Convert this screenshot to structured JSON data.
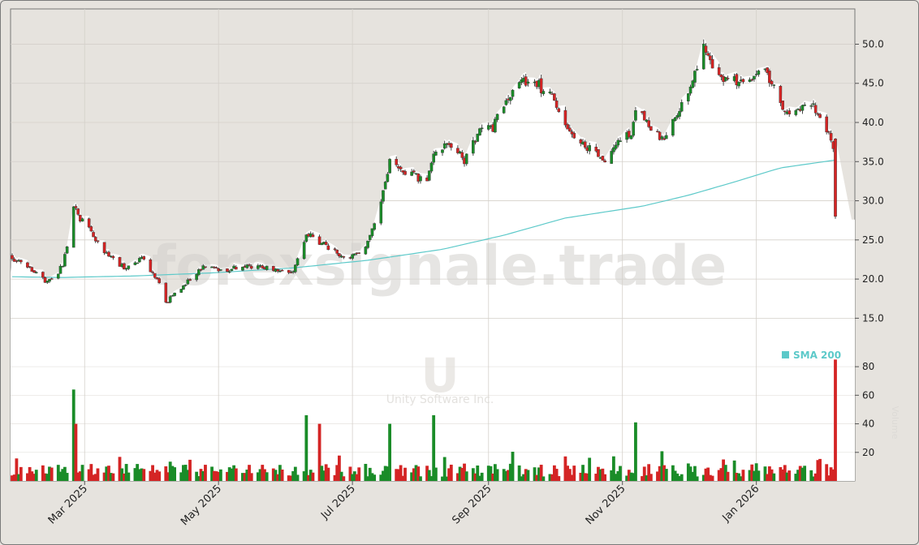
{
  "watermark": {
    "brand": "forexsignale.trade",
    "symbol": "U",
    "company": "Unity Software Inc.",
    "side_label": "Volume"
  },
  "legend": {
    "sma_label": "SMA 200"
  },
  "colors": {
    "background": "#e6e3de",
    "up": "#1a8c28",
    "down": "#d42424",
    "sma": "#5cc9c9",
    "grid": "#d4d0ca"
  },
  "chart_data": [
    {
      "type": "candlestick",
      "title": "",
      "x_axis": {
        "type": "date",
        "ticks": [
          "Mar 2025",
          "May 2025",
          "Jul 2025",
          "Sep 2025",
          "Nov 2025",
          "Jan 2026"
        ],
        "range": [
          "2025-01-27",
          "2026-02-06"
        ]
      },
      "y_axis": {
        "side": "right",
        "ylim": [
          11.0,
          54.5
        ],
        "ticks": [
          "15.0",
          "20.0",
          "25.0",
          "30.0",
          "35.0",
          "40.0",
          "45.0",
          "50.0"
        ]
      },
      "grid": true,
      "close_trend": [
        [
          "2025-01-27",
          22.8
        ],
        [
          "2025-02-04",
          21.2
        ],
        [
          "2025-02-12",
          19.6
        ],
        [
          "2025-02-19",
          21.6
        ],
        [
          "2025-02-24",
          29.0
        ],
        [
          "2025-03-05",
          25.5
        ],
        [
          "2025-03-10",
          23.6
        ],
        [
          "2025-03-20",
          21.3
        ],
        [
          "2025-03-27",
          22.6
        ],
        [
          "2025-04-03",
          20.2
        ],
        [
          "2025-04-07",
          17.0
        ],
        [
          "2025-04-14",
          18.9
        ],
        [
          "2025-04-24",
          21.6
        ],
        [
          "2025-05-05",
          21.2
        ],
        [
          "2025-05-12",
          21.8
        ],
        [
          "2025-05-20",
          21.4
        ],
        [
          "2025-06-04",
          21.1
        ],
        [
          "2025-06-10",
          25.8
        ],
        [
          "2025-06-16",
          24.6
        ],
        [
          "2025-06-30",
          22.6
        ],
        [
          "2025-07-07",
          24.4
        ],
        [
          "2025-07-14",
          29.5
        ],
        [
          "2025-07-18",
          34.7
        ],
        [
          "2025-07-28",
          33.4
        ],
        [
          "2025-08-04",
          32.4
        ],
        [
          "2025-08-07",
          36.0
        ],
        [
          "2025-08-14",
          37.6
        ],
        [
          "2025-08-21",
          35.2
        ],
        [
          "2025-08-28",
          39.2
        ],
        [
          "2025-09-03",
          39.5
        ],
        [
          "2025-09-08",
          41.9
        ],
        [
          "2025-09-15",
          45.6
        ],
        [
          "2025-09-22",
          45.2
        ],
        [
          "2025-09-30",
          43.0
        ],
        [
          "2025-10-06",
          40.0
        ],
        [
          "2025-10-10",
          37.9
        ],
        [
          "2025-10-17",
          36.8
        ],
        [
          "2025-10-24",
          34.9
        ],
        [
          "2025-10-31",
          38.3
        ],
        [
          "2025-11-05",
          38.2
        ],
        [
          "2025-11-07",
          42.0
        ],
        [
          "2025-11-14",
          39.0
        ],
        [
          "2025-11-21",
          37.8
        ],
        [
          "2025-11-26",
          41.5
        ],
        [
          "2025-12-03",
          45.3
        ],
        [
          "2025-12-08",
          49.3
        ],
        [
          "2025-12-12",
          47.1
        ],
        [
          "2025-12-19",
          45.2
        ],
        [
          "2025-12-29",
          45.7
        ],
        [
          "2026-01-06",
          46.1
        ],
        [
          "2026-01-12",
          43.0
        ],
        [
          "2026-01-16",
          40.4
        ],
        [
          "2026-01-22",
          42.5
        ],
        [
          "2026-01-28",
          41.6
        ],
        [
          "2026-02-03",
          38.9
        ],
        [
          "2026-02-05",
          36.3
        ],
        [
          "2026-02-06",
          28.0
        ]
      ],
      "series": [
        {
          "name": "SMA 200",
          "type": "line",
          "points": [
            [
              "2025-01-27",
              20.3
            ],
            [
              "2025-02-18",
              20.2
            ],
            [
              "2025-03-24",
              20.4
            ],
            [
              "2025-04-29",
              20.8
            ],
            [
              "2025-06-03",
              21.4
            ],
            [
              "2025-07-08",
              22.4
            ],
            [
              "2025-08-11",
              23.8
            ],
            [
              "2025-09-08",
              25.6
            ],
            [
              "2025-10-06",
              27.8
            ],
            [
              "2025-11-10",
              29.3
            ],
            [
              "2025-12-01",
              30.7
            ],
            [
              "2025-12-22",
              32.4
            ],
            [
              "2026-01-12",
              34.2
            ],
            [
              "2026-02-06",
              35.2
            ]
          ]
        }
      ]
    },
    {
      "type": "bar",
      "name": "Volume",
      "units": "millions",
      "y_axis": {
        "side": "right",
        "ylim": [
          0,
          92
        ],
        "ticks": [
          "20",
          "40",
          "60",
          "80"
        ]
      },
      "notable_bars": [
        [
          "2025-02-24",
          64
        ],
        [
          "2025-02-25",
          40
        ],
        [
          "2025-06-10",
          46
        ],
        [
          "2025-06-16",
          40
        ],
        [
          "2025-07-18",
          40
        ],
        [
          "2025-08-07",
          46
        ],
        [
          "2025-11-07",
          41
        ],
        [
          "2026-02-06",
          85
        ]
      ],
      "typical_range": [
        3,
        15
      ]
    }
  ]
}
